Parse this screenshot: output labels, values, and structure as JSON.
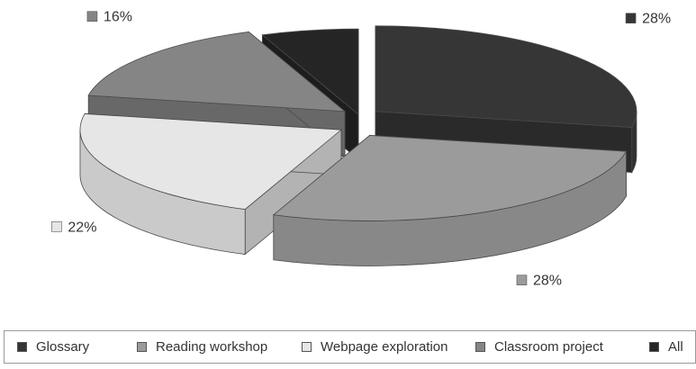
{
  "chart_data": {
    "type": "pie",
    "style": "3d-exploded",
    "title": "",
    "unit": "%",
    "slices": [
      {
        "name": "Glossary",
        "value": 28,
        "label": "28%",
        "color": "#363636"
      },
      {
        "name": "Reading workshop",
        "value": 28,
        "label": "28%",
        "color": "#9b9b9b"
      },
      {
        "name": "Webpage exploration",
        "value": 22,
        "label": "22%",
        "color": "#e6e6e6"
      },
      {
        "name": "Classroom project",
        "value": 16,
        "label": "16%",
        "color": "#858585"
      },
      {
        "name": "All",
        "value": 6,
        "label": "6%",
        "color": "#252525"
      }
    ],
    "legend": {
      "position": "bottom"
    }
  }
}
